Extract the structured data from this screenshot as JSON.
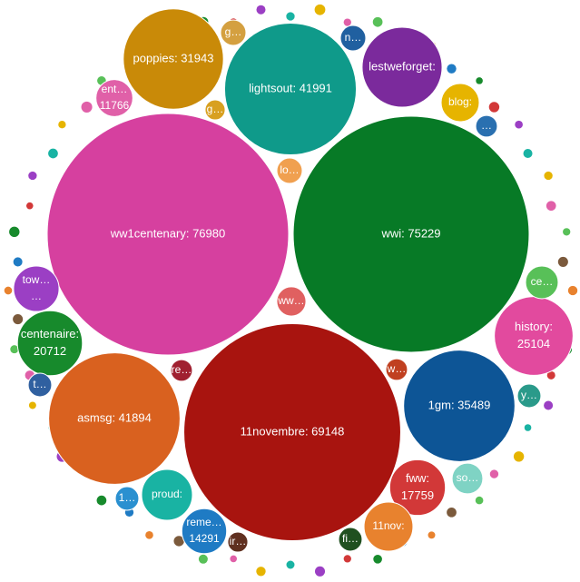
{
  "chart_data": {
    "type": "packed-bubble",
    "items": [
      {
        "label": [
          "ww1centenary: 76980"
        ],
        "value": 76980,
        "color": "#d6409f"
      },
      {
        "label": [
          "wwi: 75229"
        ],
        "value": 75229,
        "color": "#077a26"
      },
      {
        "label": [
          "11novembre: 69148"
        ],
        "value": 69148,
        "color": "#a8140f"
      },
      {
        "label": [
          "lightsout: 41991"
        ],
        "value": 41991,
        "color": "#0f9a8a"
      },
      {
        "label": [
          "asmsg: 41894"
        ],
        "value": 41894,
        "color": "#d9611f"
      },
      {
        "label": [
          "1gm: 35489"
        ],
        "value": 35489,
        "color": "#0d5596"
      },
      {
        "label": [
          "poppies: 31943"
        ],
        "value": 31943,
        "color": "#c98a08"
      },
      {
        "label": [
          "history:",
          "25104"
        ],
        "value": 25104,
        "color": "#e24a9e"
      },
      {
        "label": [
          "lestweforget:"
        ],
        "value": 25500,
        "color": "#7b2a9c"
      },
      {
        "label": [
          "centenaire:",
          "20712"
        ],
        "value": 20712,
        "color": "#178a2c"
      },
      {
        "label": [
          "fww:",
          "17759"
        ],
        "value": 17759,
        "color": "#d23838"
      },
      {
        "label": [
          "reme…",
          "14291"
        ],
        "value": 14291,
        "color": "#1f7bc4"
      },
      {
        "label": [
          "proud:"
        ],
        "value": 16200,
        "color": "#19b3a3"
      },
      {
        "label": [
          "11nov:"
        ],
        "value": 15600,
        "color": "#e8822e"
      },
      {
        "label": [
          "blog:"
        ],
        "value": 12150,
        "color": "#e6b400"
      },
      {
        "label": [
          "ent…",
          "11766"
        ],
        "value": 11766,
        "color": "#e060a8"
      },
      {
        "label": [
          "tow…",
          "…"
        ],
        "value": 14500,
        "color": "#9b3fc4"
      },
      {
        "label": [
          "so…"
        ],
        "value": 9800,
        "color": "#7fd3c4"
      },
      {
        "label": [
          "ce…"
        ],
        "value": 10400,
        "color": "#58c058"
      },
      {
        "label": [
          "g…"
        ],
        "value": 8100,
        "color": "#d4a040"
      },
      {
        "label": [
          "n…"
        ],
        "value": 8100,
        "color": "#2060a0"
      },
      {
        "label": [
          "g…"
        ],
        "value": 6400,
        "color": "#d8a020"
      },
      {
        "label": [
          "lo…"
        ],
        "value": 8100,
        "color": "#f0a050"
      },
      {
        "label": [
          "ww…"
        ],
        "value": 9300,
        "color": "#e06060"
      },
      {
        "label": [
          "re…"
        ],
        "value": 6900,
        "color": "#a02030"
      },
      {
        "label": [
          "w…"
        ],
        "value": 6900,
        "color": "#c04020"
      },
      {
        "label": [
          "y…"
        ],
        "value": 7500,
        "color": "#2a9a8a"
      },
      {
        "label": [
          "t…"
        ],
        "value": 7500,
        "color": "#3060a0"
      },
      {
        "label": [
          "1…"
        ],
        "value": 7500,
        "color": "#2a90d0"
      },
      {
        "label": [
          "fi…"
        ],
        "value": 7500,
        "color": "#205020"
      },
      {
        "label": [
          "ir…"
        ],
        "value": 6400,
        "color": "#603020"
      },
      {
        "label": [
          "…"
        ],
        "value": 6900,
        "color": "#2a70b0"
      }
    ],
    "palette": [
      "#e8822e",
      "#1f7bc4",
      "#178a2c",
      "#d23838",
      "#9b3fc4",
      "#19b3a3",
      "#e6b400",
      "#e060a8",
      "#58c058",
      "#7b5a3c"
    ],
    "minor_values": [
      3000,
      2400,
      3400,
      2600,
      2900,
      2200,
      3300,
      2700,
      2500,
      3100,
      2300,
      3500,
      2800,
      2400,
      3200,
      2600,
      3000,
      2200,
      2900,
      3300,
      2500,
      2700,
      3100,
      2400,
      3400,
      2800,
      2300,
      3000,
      2600,
      3200,
      2500,
      2900,
      3300,
      2200,
      2700,
      3100,
      2400,
      3500,
      2800,
      2600,
      3000,
      2300,
      3200,
      2500,
      2900,
      2700,
      3400,
      2400,
      3100,
      2600,
      2800,
      3000,
      2200,
      3300,
      2500,
      2900,
      2700,
      3100,
      2400,
      3200
    ]
  }
}
